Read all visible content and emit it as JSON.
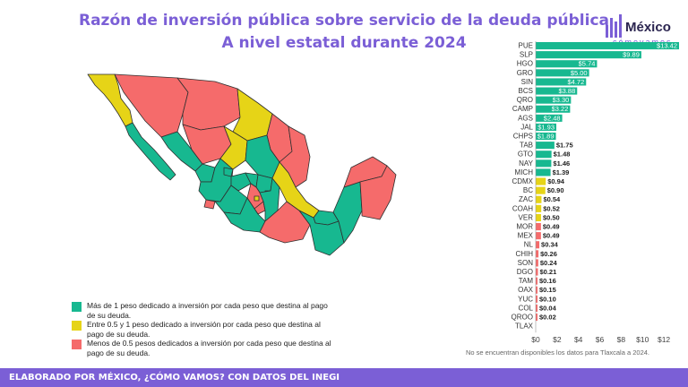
{
  "header": {
    "title_line1": "Razón de inversión pública sobre servicio de la deuda pública",
    "title_line2": "A nivel estatal durante 2024"
  },
  "logo": {
    "word": "México",
    "sub": "cómovamos"
  },
  "legend": [
    {
      "color": "#17b890",
      "text": "Más de 1 peso dedicado a inversión por cada peso que destina al pago de su deuda."
    },
    {
      "color": "#e6d417",
      "text": "Entre 0.5 y 1 peso dedicado a inversión por cada peso que destina al pago de su deuda."
    },
    {
      "color": "#f56b6b",
      "text": "Menos de 0.5 pesos dedicados a inversión por cada peso que destina al pago de su deuda."
    }
  ],
  "chart_data": {
    "type": "bar",
    "orientation": "horizontal",
    "categories": [
      "PUE",
      "SLP",
      "HGO",
      "GRO",
      "SIN",
      "BCS",
      "QRO",
      "CAMP",
      "AGS",
      "JAL",
      "CHPS",
      "TAB",
      "GTO",
      "NAY",
      "MICH",
      "CDMX",
      "BC",
      "ZAC",
      "COAH",
      "VER",
      "MOR",
      "MEX",
      "NL",
      "CHIH",
      "SON",
      "DGO",
      "TAM",
      "OAX",
      "YUC",
      "COL",
      "QROO",
      "TLAX"
    ],
    "values": [
      13.42,
      9.89,
      5.74,
      5.0,
      4.72,
      3.88,
      3.3,
      3.22,
      2.48,
      1.93,
      1.89,
      1.75,
      1.48,
      1.46,
      1.39,
      0.94,
      0.9,
      0.54,
      0.52,
      0.5,
      0.49,
      0.49,
      0.34,
      0.26,
      0.24,
      0.21,
      0.16,
      0.15,
      0.1,
      0.04,
      0.02,
      null
    ],
    "labels": [
      "$13.42",
      "$9.89",
      "$5.74",
      "$5.00",
      "$4.72",
      "$3.88",
      "$3.30",
      "$3.22",
      "$2.48",
      "$1.93",
      "$1.89",
      "$1.75",
      "$1.48",
      "$1.46",
      "$1.39",
      "$0.94",
      "$0.90",
      "$0.54",
      "$0.52",
      "$0.50",
      "$0.49",
      "$0.49",
      "$0.34",
      "$0.26",
      "$0.24",
      "$0.21",
      "$0.16",
      "$0.15",
      "$0.10",
      "$0.04",
      "$0.02",
      ""
    ],
    "xlim": [
      0,
      13.42
    ],
    "xticks": [
      "$0",
      "$2",
      "$4",
      "$6",
      "$8",
      "$10",
      "$12"
    ],
    "colors": {
      "high": "#17b890",
      "mid": "#e6d417",
      "low": "#f56b6b"
    }
  },
  "note": "No se encuentran disponibles los datos para Tlaxcala a 2024.",
  "footer": {
    "text": "ELABORADO POR MÉXICO, ¿CÓMO VAMOS? CON DATOS DEL INEGI"
  }
}
